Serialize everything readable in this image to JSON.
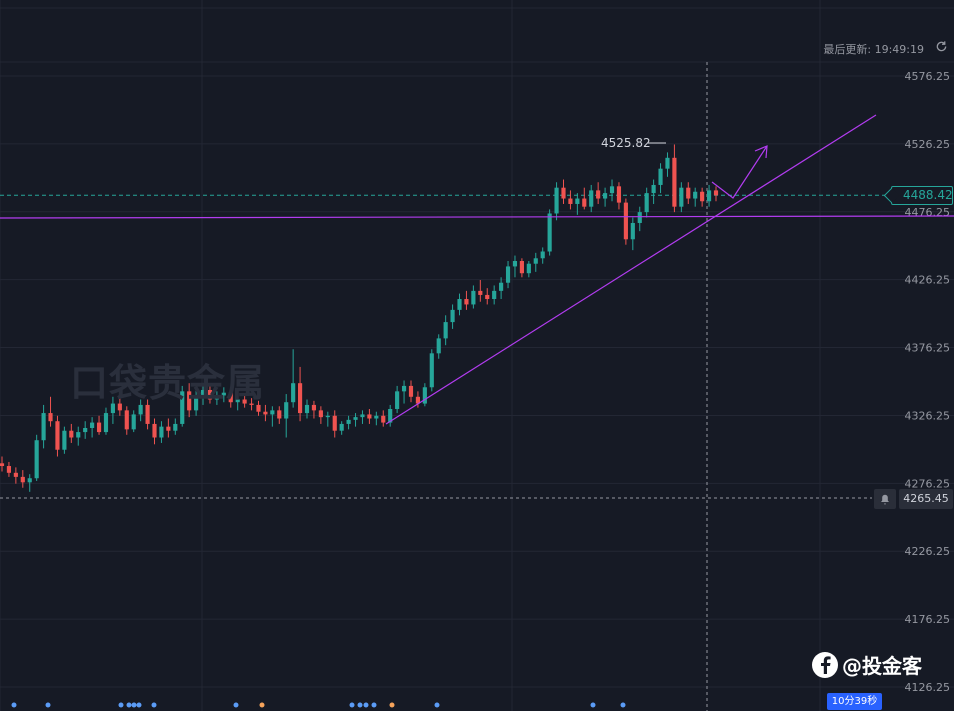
{
  "header": {
    "update_label": "最后更新: 19:49:19"
  },
  "watermark": "口袋贵金属",
  "brand": {
    "text": "@投金客"
  },
  "current_price": "4488.42",
  "alert_price": "4265.45",
  "countdown": "10分39秒",
  "high_label": "4525.82",
  "colors": {
    "up": "#26a69a",
    "down": "#ef5350",
    "line": "#b23cf0",
    "bg": "#161a25"
  },
  "chart_data": {
    "type": "candlestick",
    "y_ticks": [
      "4576.25",
      "4526.25",
      "4476.25",
      "4426.25",
      "4376.25",
      "4326.25",
      "4276.25",
      "4226.25",
      "4176.25",
      "4126.25"
    ],
    "ylim": [
      4118,
      4585
    ],
    "candles": [
      [
        4291,
        4296,
        4285,
        4289
      ],
      [
        4289,
        4292,
        4281,
        4284
      ],
      [
        4284,
        4288,
        4276,
        4281
      ],
      [
        4281,
        4286,
        4273,
        4277
      ],
      [
        4277,
        4283,
        4270,
        4280
      ],
      [
        4280,
        4312,
        4278,
        4308
      ],
      [
        4308,
        4334,
        4302,
        4328
      ],
      [
        4328,
        4340,
        4318,
        4322
      ],
      [
        4322,
        4326,
        4296,
        4301
      ],
      [
        4301,
        4318,
        4298,
        4315
      ],
      [
        4315,
        4320,
        4306,
        4310
      ],
      [
        4310,
        4318,
        4304,
        4314
      ],
      [
        4314,
        4322,
        4309,
        4317
      ],
      [
        4317,
        4325,
        4310,
        4321
      ],
      [
        4321,
        4326,
        4312,
        4314
      ],
      [
        4314,
        4332,
        4312,
        4328
      ],
      [
        4328,
        4340,
        4320,
        4335
      ],
      [
        4335,
        4342,
        4326,
        4330
      ],
      [
        4330,
        4333,
        4312,
        4316
      ],
      [
        4316,
        4330,
        4314,
        4327
      ],
      [
        4327,
        4338,
        4322,
        4334
      ],
      [
        4334,
        4338,
        4316,
        4320
      ],
      [
        4320,
        4324,
        4305,
        4310
      ],
      [
        4310,
        4322,
        4306,
        4318
      ],
      [
        4318,
        4324,
        4310,
        4315
      ],
      [
        4315,
        4324,
        4312,
        4320
      ],
      [
        4320,
        4348,
        4318,
        4344
      ],
      [
        4344,
        4350,
        4325,
        4330
      ],
      [
        4330,
        4346,
        4326,
        4341
      ],
      [
        4341,
        4350,
        4334,
        4345
      ],
      [
        4345,
        4349,
        4335,
        4338
      ],
      [
        4338,
        4344,
        4334,
        4341
      ],
      [
        4341,
        4347,
        4336,
        4343
      ],
      [
        4343,
        4345,
        4332,
        4336
      ],
      [
        4336,
        4341,
        4330,
        4338
      ],
      [
        4338,
        4342,
        4332,
        4335
      ],
      [
        4335,
        4339,
        4330,
        4334
      ],
      [
        4334,
        4337,
        4326,
        4329
      ],
      [
        4329,
        4334,
        4322,
        4327
      ],
      [
        4327,
        4333,
        4318,
        4330
      ],
      [
        4330,
        4333,
        4320,
        4324
      ],
      [
        4324,
        4342,
        4310,
        4336
      ],
      [
        4336,
        4375,
        4332,
        4350
      ],
      [
        4350,
        4362,
        4322,
        4328
      ],
      [
        4328,
        4338,
        4324,
        4334
      ],
      [
        4334,
        4337,
        4324,
        4330
      ],
      [
        4330,
        4333,
        4320,
        4325
      ],
      [
        4325,
        4329,
        4318,
        4326
      ],
      [
        4326,
        4330,
        4310,
        4315
      ],
      [
        4315,
        4322,
        4312,
        4320
      ],
      [
        4320,
        4326,
        4316,
        4323
      ],
      [
        4323,
        4328,
        4318,
        4325
      ],
      [
        4325,
        4330,
        4320,
        4327
      ],
      [
        4327,
        4331,
        4320,
        4324
      ],
      [
        4324,
        4329,
        4319,
        4326
      ],
      [
        4326,
        4330,
        4318,
        4321
      ],
      [
        4321,
        4334,
        4318,
        4331
      ],
      [
        4331,
        4348,
        4328,
        4344
      ],
      [
        4344,
        4352,
        4335,
        4348
      ],
      [
        4348,
        4352,
        4336,
        4340
      ],
      [
        4340,
        4344,
        4332,
        4335
      ],
      [
        4335,
        4350,
        4333,
        4347
      ],
      [
        4347,
        4375,
        4344,
        4372
      ],
      [
        4372,
        4386,
        4368,
        4383
      ],
      [
        4383,
        4400,
        4378,
        4395
      ],
      [
        4395,
        4408,
        4390,
        4404
      ],
      [
        4404,
        4416,
        4400,
        4412
      ],
      [
        4412,
        4418,
        4404,
        4408
      ],
      [
        4408,
        4422,
        4405,
        4418
      ],
      [
        4418,
        4426,
        4410,
        4415
      ],
      [
        4415,
        4420,
        4408,
        4412
      ],
      [
        4412,
        4422,
        4408,
        4418
      ],
      [
        4418,
        4428,
        4412,
        4424
      ],
      [
        4424,
        4440,
        4420,
        4436
      ],
      [
        4436,
        4444,
        4428,
        4440
      ],
      [
        4440,
        4442,
        4428,
        4431
      ],
      [
        4431,
        4440,
        4428,
        4438
      ],
      [
        4438,
        4446,
        4432,
        4442
      ],
      [
        4442,
        4450,
        4438,
        4447
      ],
      [
        4447,
        4478,
        4444,
        4475
      ],
      [
        4475,
        4498,
        4470,
        4494
      ],
      [
        4494,
        4500,
        4482,
        4486
      ],
      [
        4486,
        4492,
        4478,
        4482
      ],
      [
        4482,
        4490,
        4474,
        4486
      ],
      [
        4486,
        4494,
        4478,
        4480
      ],
      [
        4480,
        4496,
        4476,
        4492
      ],
      [
        4492,
        4498,
        4482,
        4486
      ],
      [
        4486,
        4494,
        4480,
        4490
      ],
      [
        4490,
        4500,
        4484,
        4495
      ],
      [
        4495,
        4498,
        4478,
        4483
      ],
      [
        4483,
        4486,
        4452,
        4456
      ],
      [
        4456,
        4472,
        4448,
        4468
      ],
      [
        4468,
        4480,
        4462,
        4476
      ],
      [
        4476,
        4494,
        4472,
        4490
      ],
      [
        4490,
        4500,
        4482,
        4496
      ],
      [
        4496,
        4512,
        4490,
        4508
      ],
      [
        4508,
        4520,
        4502,
        4516
      ],
      [
        4516,
        4525.82,
        4476,
        4480
      ],
      [
        4480,
        4498,
        4476,
        4494
      ],
      [
        4494,
        4498,
        4482,
        4486
      ],
      [
        4486,
        4494,
        4480,
        4491
      ],
      [
        4491,
        4494,
        4480,
        4484
      ],
      [
        4484,
        4496,
        4480,
        4492
      ],
      [
        4492,
        4495,
        4484,
        4488.42
      ]
    ]
  }
}
